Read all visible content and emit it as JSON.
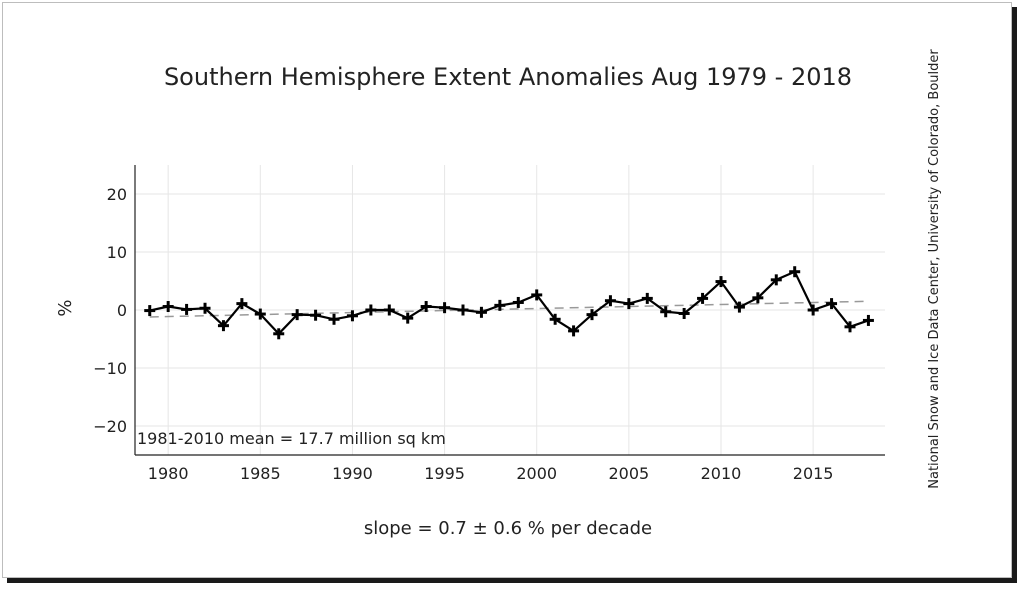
{
  "chart_data": {
    "type": "line",
    "title": "Southern Hemisphere Extent Anomalies Aug 1979 - 2018",
    "xlabel": "slope = 0.7 ± 0.6 % per decade",
    "ylabel": "%",
    "annotation": "1981-2010 mean = 17.7 million sq km",
    "credit": "National Snow and Ice Data Center, University of Colorado, Boulder",
    "xlim": [
      1978.2,
      2018.9
    ],
    "ylim": [
      -25,
      25
    ],
    "x_ticks": [
      1980,
      1985,
      1990,
      1995,
      2000,
      2005,
      2010,
      2015
    ],
    "x_tick_labels": [
      "1980",
      "1985",
      "1990",
      "1995",
      "2000",
      "2005",
      "2010",
      "2015"
    ],
    "y_ticks": [
      20,
      10,
      0,
      -10,
      -20
    ],
    "y_tick_labels": [
      "20",
      "10",
      "0",
      "−10",
      "−20"
    ],
    "grid": true,
    "series": [
      {
        "marker": "plus",
        "color": "#000000",
        "x": [
          1979,
          1980,
          1981,
          1982,
          1983,
          1984,
          1985,
          1986,
          1987,
          1988,
          1989,
          1990,
          1991,
          1992,
          1993,
          1994,
          1995,
          1996,
          1997,
          1998,
          1999,
          2000,
          2001,
          2002,
          2003,
          2004,
          2005,
          2006,
          2007,
          2008,
          2009,
          2010,
          2011,
          2012,
          2013,
          2014,
          2015,
          2016,
          2017,
          2018
        ],
        "y": [
          -0.1,
          0.6,
          0.1,
          0.3,
          -2.7,
          1.1,
          -0.7,
          -4.1,
          -0.8,
          -0.9,
          -1.6,
          -1.0,
          0.0,
          0.0,
          -1.4,
          0.6,
          0.4,
          0.0,
          -0.4,
          0.8,
          1.3,
          2.6,
          -1.6,
          -3.6,
          -0.8,
          1.6,
          1.1,
          2.0,
          -0.3,
          -0.6,
          2.0,
          4.9,
          0.5,
          2.1,
          5.2,
          6.6,
          0.0,
          1.1,
          -2.9,
          -1.8
        ]
      }
    ],
    "trend": {
      "style": "dashed",
      "color": "#999999",
      "x": [
        1979,
        2018
      ],
      "y": [
        -1.2,
        1.5
      ]
    }
  }
}
